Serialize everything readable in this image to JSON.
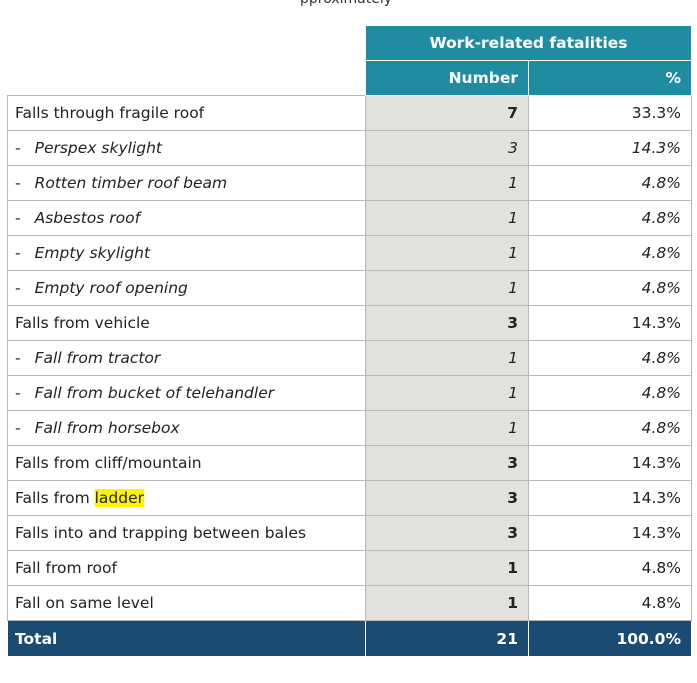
{
  "top_clipped_text": "pproximately",
  "header": {
    "group_label": "Work-related fatalities",
    "number_label": "Number",
    "pct_label": "%"
  },
  "rows": [
    {
      "label": "Falls through fragile roof",
      "number": "7",
      "pct": "33.3%"
    },
    {
      "label": "Perspex skylight",
      "dash": "-",
      "number": "3",
      "pct": "14.3%"
    },
    {
      "label": "Rotten timber roof beam",
      "dash": "-",
      "number": "1",
      "pct": "4.8%"
    },
    {
      "label": "Asbestos roof",
      "dash": "-",
      "number": "1",
      "pct": "4.8%"
    },
    {
      "label": "Empty skylight",
      "dash": "-",
      "number": "1",
      "pct": "4.8%"
    },
    {
      "label": "Empty roof opening",
      "dash": "-",
      "number": "1",
      "pct": "4.8%"
    },
    {
      "label": "Falls from vehicle",
      "number": "3",
      "pct": "14.3%"
    },
    {
      "label": "Fall from tractor",
      "dash": "-",
      "number": "1",
      "pct": "4.8%"
    },
    {
      "label": "Fall from bucket of telehandler",
      "dash": "-",
      "number": "1",
      "pct": "4.8%"
    },
    {
      "label": "Fall from horsebox",
      "dash": "-",
      "number": "1",
      "pct": "4.8%"
    },
    {
      "label": "Falls from cliff/mountain",
      "number": "3",
      "pct": "14.3%"
    },
    {
      "label_prefix": "Falls from ",
      "label_highlight": "ladder",
      "number": "3",
      "pct": "14.3%"
    },
    {
      "label": "Falls into and trapping between bales",
      "number": "3",
      "pct": "14.3%"
    },
    {
      "label": "Fall from roof",
      "number": "1",
      "pct": "4.8%"
    },
    {
      "label": "Fall on same level",
      "number": "1",
      "pct": "4.8%"
    }
  ],
  "total": {
    "label": "Total",
    "number": "21",
    "pct": "100.0%"
  },
  "colors": {
    "header_teal": "#1f8ca2",
    "total_navy": "#1a4b73",
    "number_column_gray": "#e2e1de",
    "highlight_yellow": "#fff200"
  }
}
